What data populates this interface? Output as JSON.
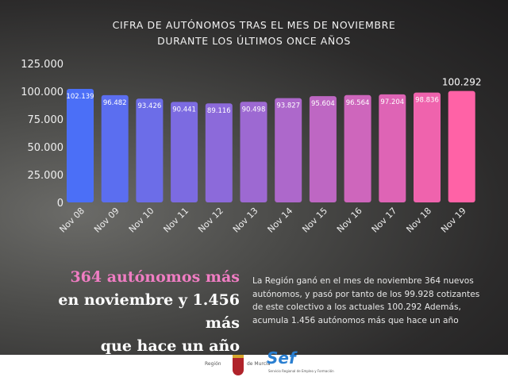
{
  "chart_data": {
    "type": "bar",
    "title": "CIFRA DE AUTÓNOMOS TRAS EL MES DE NOVIEMBRE DURANTE LOS ÚLTIMOS ONCE AÑOS",
    "title_lines": [
      "CIFRA DE AUTÓNOMOS TRAS EL MES DE NOVIEMBRE",
      "DURANTE LOS ÚLTIMOS ONCE AÑOS"
    ],
    "categories": [
      "Nov 08",
      "Nov 09",
      "Nov 10",
      "Nov 11",
      "Nov 12",
      "Nov 13",
      "Nov 14",
      "Nov 15",
      "Nov 16",
      "Nov 17",
      "Nov 18",
      "Nov 19"
    ],
    "values": [
      102139,
      96482,
      93426,
      90441,
      89116,
      90498,
      93827,
      95604,
      96564,
      97204,
      98836,
      100292
    ],
    "data_labels": [
      "102.139",
      "96.482",
      "93.426",
      "90.441",
      "89.116",
      "90.498",
      "93.827",
      "95.604",
      "96.564",
      "97.204",
      "98.836",
      "100.292"
    ],
    "yticks": [
      0,
      25000,
      50000,
      75000,
      100000,
      125000
    ],
    "ytick_labels": [
      "0",
      "25.000",
      "50.000",
      "75.000",
      "100.000",
      "125.000"
    ],
    "ylim": [
      0,
      125000
    ],
    "grid": false,
    "colors": {
      "start": "#4b6ff7",
      "end": "#ff62a6"
    }
  },
  "headline": {
    "line1": "364 autónomos más",
    "line2": "en noviembre y 1.456 más",
    "line3": "que hace un año"
  },
  "body_text": "La Región ganó en el mes de noviembre 364 nuevos autónomos, y pasó por tanto de los 99.928 cotizantes de este colectivo a los actuales 100.292 Además, acumula 1.456 autónomos más que hace un año",
  "footer": {
    "region_left": "Región",
    "region_right": "de Murcia",
    "sef": "Sef",
    "sef_sub": "Servicio Regional de Empleo y Formación"
  }
}
